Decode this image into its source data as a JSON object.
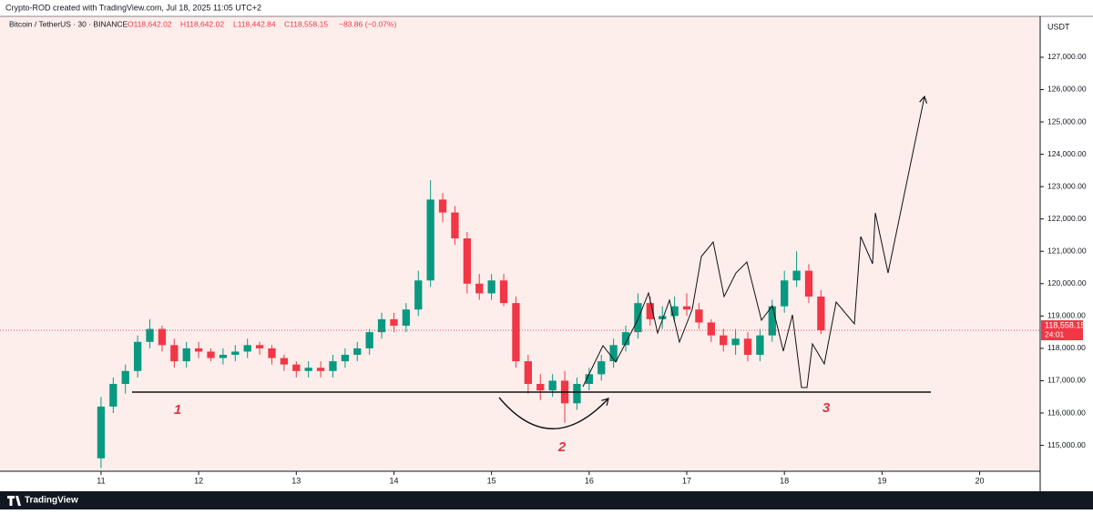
{
  "header": {
    "text": "Crypto-ROD created with TradingView.com, Jul 18, 2025 11:05 UTC+2"
  },
  "legend": {
    "symbol": "Bitcoin / TetherUS · 30 · BINANCE",
    "open": "O118,642.02",
    "high": "H118,642.02",
    "low": "L118,442.84",
    "close": "C118,558.15",
    "change": "−83.86 (−0.07%)"
  },
  "currency": "USDT",
  "price_tag": {
    "price": "118,558.15",
    "countdown": "24:01"
  },
  "annotations": {
    "label_1": "1",
    "label_2": "2",
    "label_3": "3"
  },
  "footer": {
    "brand": "TradingView"
  },
  "chart_data": {
    "type": "candlestick",
    "up_color": "#089981",
    "down_color": "#f23645",
    "x": [
      11.0,
      11.125,
      11.25,
      11.375,
      11.5,
      11.625,
      11.75,
      11.875,
      12.0,
      12.125,
      12.25,
      12.375,
      12.5,
      12.625,
      12.75,
      12.875,
      13.0,
      13.125,
      13.25,
      13.375,
      13.5,
      13.625,
      13.75,
      13.875,
      14.0,
      14.125,
      14.25,
      14.375,
      14.5,
      14.625,
      14.75,
      14.875,
      15.0,
      15.125,
      15.25,
      15.375,
      15.5,
      15.625,
      15.75,
      15.875,
      16.0,
      16.125,
      16.25,
      16.375,
      16.5,
      16.625,
      16.75,
      16.875,
      17.0,
      17.125,
      17.25,
      17.375,
      17.5,
      17.625,
      17.75,
      17.875,
      18.0,
      18.125,
      18.25,
      18.375
    ],
    "open": [
      114600,
      116200,
      116900,
      117300,
      118200,
      118600,
      118100,
      117600,
      118000,
      117900,
      117700,
      117800,
      117900,
      118100,
      118000,
      117700,
      117500,
      117300,
      117400,
      117300,
      117600,
      117800,
      118000,
      118500,
      118900,
      118700,
      119200,
      120100,
      122600,
      122200,
      121400,
      120000,
      119700,
      120100,
      119400,
      117600,
      116900,
      116700,
      117000,
      116300,
      116900,
      117200,
      117600,
      118100,
      118500,
      119400,
      118900,
      119000,
      119300,
      119200,
      118800,
      118400,
      118100,
      118300,
      117800,
      118400,
      119300,
      120100,
      120400,
      119600
    ],
    "high": [
      116500,
      117100,
      117500,
      118400,
      118900,
      118700,
      118300,
      118200,
      118200,
      118000,
      118000,
      118100,
      118300,
      118200,
      118100,
      117800,
      117600,
      117600,
      117600,
      117800,
      118000,
      118200,
      118600,
      119100,
      119100,
      119400,
      120400,
      123200,
      122800,
      122400,
      121600,
      120300,
      120300,
      120300,
      119600,
      117800,
      117200,
      117200,
      117300,
      117100,
      117400,
      117800,
      118300,
      118700,
      119700,
      119600,
      119300,
      119600,
      119700,
      119400,
      118900,
      118600,
      118600,
      118500,
      118600,
      119500,
      120400,
      121000,
      120600,
      119800
    ],
    "low": [
      114300,
      116000,
      116600,
      117100,
      118000,
      117900,
      117400,
      117400,
      117700,
      117600,
      117500,
      117600,
      117700,
      117800,
      117500,
      117300,
      117100,
      117100,
      117100,
      117100,
      117400,
      117600,
      117800,
      118300,
      118500,
      118500,
      119000,
      119900,
      121900,
      121200,
      119700,
      119500,
      119500,
      119300,
      117400,
      116600,
      116400,
      116500,
      115700,
      116100,
      116700,
      117000,
      117400,
      117900,
      118300,
      118700,
      118600,
      118800,
      119000,
      118600,
      118200,
      117900,
      117800,
      117600,
      117600,
      118200,
      119100,
      119900,
      119400,
      118442.84
    ],
    "close": [
      116200,
      116900,
      117300,
      118200,
      118600,
      118100,
      117600,
      118000,
      117900,
      117700,
      117800,
      117900,
      118100,
      118000,
      117700,
      117500,
      117300,
      117400,
      117300,
      117600,
      117800,
      118000,
      118500,
      118900,
      118700,
      119200,
      120100,
      122600,
      122200,
      121400,
      120000,
      119700,
      120100,
      119400,
      117600,
      116900,
      116700,
      117000,
      116300,
      116900,
      117200,
      117600,
      118100,
      118500,
      119400,
      118900,
      119000,
      119300,
      119200,
      118800,
      118400,
      118100,
      118300,
      117800,
      118400,
      119300,
      120100,
      120400,
      119600,
      118558.15
    ],
    "xlim": [
      9.965,
      20.62
    ],
    "ylim": [
      114200,
      128264
    ],
    "xticks": [
      11,
      12,
      13,
      14,
      15,
      16,
      17,
      18,
      19,
      20
    ],
    "yticks": [
      {
        "value": 115000,
        "label": "115,000.00"
      },
      {
        "value": 116000,
        "label": "116,000.00"
      },
      {
        "value": 117000,
        "label": "117,000.00"
      },
      {
        "value": 118000,
        "label": "118,000.00"
      },
      {
        "value": 119000,
        "label": "119,000.00"
      },
      {
        "value": 120000,
        "label": "120,000.00"
      },
      {
        "value": 121000,
        "label": "121,000.00"
      },
      {
        "value": 122000,
        "label": "122,000.00"
      },
      {
        "value": 123000,
        "label": "123,000.00"
      },
      {
        "value": 124000,
        "label": "124,000.00"
      },
      {
        "value": 125000,
        "label": "125,000.00"
      },
      {
        "value": 126000,
        "label": "126,000.00"
      },
      {
        "value": 127000,
        "label": "127,000.00"
      }
    ]
  }
}
